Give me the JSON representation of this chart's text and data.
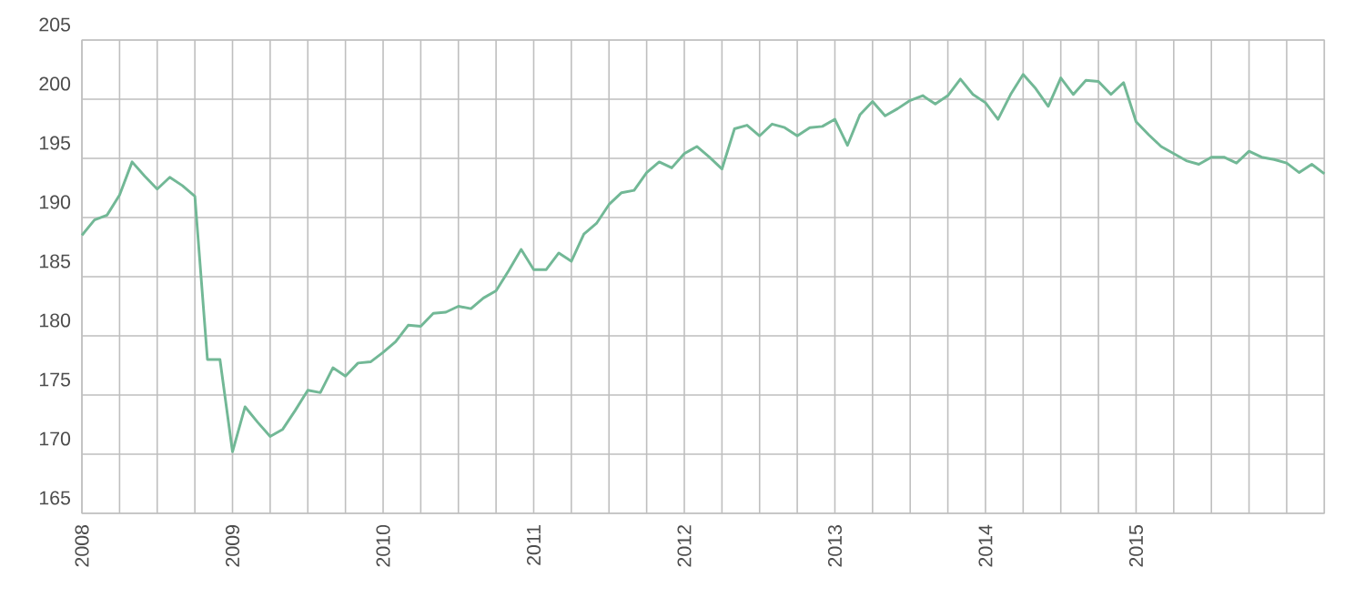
{
  "chart_data": {
    "type": "line",
    "x": [
      "2008-01",
      "2008-02",
      "2008-03",
      "2008-04",
      "2008-05",
      "2008-06",
      "2008-07",
      "2008-08",
      "2008-09",
      "2008-10",
      "2008-11",
      "2008-12",
      "2009-01",
      "2009-02",
      "2009-03",
      "2009-04",
      "2009-05",
      "2009-06",
      "2009-07",
      "2009-08",
      "2009-09",
      "2009-10",
      "2009-11",
      "2009-12",
      "2010-01",
      "2010-02",
      "2010-03",
      "2010-04",
      "2010-05",
      "2010-06",
      "2010-07",
      "2010-08",
      "2010-09",
      "2010-10",
      "2010-11",
      "2010-12",
      "2011-01",
      "2011-02",
      "2011-03",
      "2011-04",
      "2011-05",
      "2011-06",
      "2011-07",
      "2011-08",
      "2011-09",
      "2011-10",
      "2011-11",
      "2011-12",
      "2012-01",
      "2012-02",
      "2012-03",
      "2012-04",
      "2012-05",
      "2012-06",
      "2012-07",
      "2012-08",
      "2012-09",
      "2012-10",
      "2012-11",
      "2012-12",
      "2013-01",
      "2013-02",
      "2013-03",
      "2013-04",
      "2013-05",
      "2013-06",
      "2013-07",
      "2013-08",
      "2013-09",
      "2013-10",
      "2013-11",
      "2013-12",
      "2014-01",
      "2014-02",
      "2014-03",
      "2014-04",
      "2014-05",
      "2014-06",
      "2014-07",
      "2014-08",
      "2014-09",
      "2014-10",
      "2014-11",
      "2014-12",
      "2015-01",
      "2015-02",
      "2015-03",
      "2015-04",
      "2015-05",
      "2015-06",
      "2015-07",
      "2015-08",
      "2015-09",
      "2015-10",
      "2015-11",
      "2015-12",
      "2016-01",
      "2016-02",
      "2016-03",
      "2016-04"
    ],
    "series": [
      {
        "color": "#72b896",
        "values": [
          188.5,
          189.8,
          190.2,
          191.9,
          194.7,
          193.5,
          192.4,
          193.4,
          192.7,
          191.8,
          178.0,
          178.0,
          170.2,
          174.0,
          172.7,
          171.5,
          172.1,
          173.7,
          175.4,
          175.2,
          177.3,
          176.6,
          177.7,
          177.8,
          178.6,
          179.5,
          180.9,
          180.8,
          181.9,
          182.0,
          182.5,
          182.3,
          183.2,
          183.8,
          185.5,
          187.3,
          185.6,
          185.6,
          187.0,
          186.3,
          188.6,
          189.5,
          191.1,
          192.1,
          192.3,
          193.8,
          194.7,
          194.2,
          195.4,
          196.0,
          195.1,
          194.1,
          197.5,
          197.8,
          196.9,
          197.9,
          197.6,
          196.9,
          197.6,
          197.7,
          198.3,
          196.1,
          198.7,
          199.8,
          198.6,
          199.2,
          199.9,
          200.3,
          199.6,
          200.3,
          201.7,
          200.4,
          199.7,
          198.3,
          200.4,
          202.1,
          200.9,
          199.4,
          201.8,
          200.4,
          201.6,
          201.5,
          200.4,
          201.4,
          198.1,
          197.0,
          196.0,
          195.4,
          194.8,
          194.5,
          195.1,
          195.1,
          194.6,
          195.6,
          195.1,
          194.9,
          194.6,
          193.8,
          194.5,
          193.7
        ]
      }
    ],
    "xlim": [
      "2008-01",
      "2016-04"
    ],
    "xticks": [
      {
        "value": "2008-01",
        "label": "2008"
      },
      {
        "value": "2008-04",
        "label": null
      },
      {
        "value": "2008-07",
        "label": null
      },
      {
        "value": "2008-10",
        "label": null
      },
      {
        "value": "2009-01",
        "label": "2009"
      },
      {
        "value": "2009-04",
        "label": null
      },
      {
        "value": "2009-07",
        "label": null
      },
      {
        "value": "2009-10",
        "label": null
      },
      {
        "value": "2010-01",
        "label": "2010"
      },
      {
        "value": "2010-04",
        "label": null
      },
      {
        "value": "2010-07",
        "label": null
      },
      {
        "value": "2010-10",
        "label": null
      },
      {
        "value": "2011-01",
        "label": "2011"
      },
      {
        "value": "2011-04",
        "label": null
      },
      {
        "value": "2011-07",
        "label": null
      },
      {
        "value": "2011-10",
        "label": null
      },
      {
        "value": "2012-01",
        "label": "2012"
      },
      {
        "value": "2012-04",
        "label": null
      },
      {
        "value": "2012-07",
        "label": null
      },
      {
        "value": "2012-10",
        "label": null
      },
      {
        "value": "2013-01",
        "label": "2013"
      },
      {
        "value": "2013-04",
        "label": null
      },
      {
        "value": "2013-07",
        "label": null
      },
      {
        "value": "2013-10",
        "label": null
      },
      {
        "value": "2014-01",
        "label": "2014"
      },
      {
        "value": "2014-04",
        "label": null
      },
      {
        "value": "2014-07",
        "label": null
      },
      {
        "value": "2014-10",
        "label": null
      },
      {
        "value": "2015-01",
        "label": "2015"
      },
      {
        "value": "2015-04",
        "label": null
      },
      {
        "value": "2015-07",
        "label": null
      },
      {
        "value": "2015-10",
        "label": null
      },
      {
        "value": "2016-01",
        "label": null
      },
      {
        "value": "2016-04",
        "label": null
      }
    ],
    "ylim": [
      165,
      205
    ],
    "yticks": [
      165,
      170,
      175,
      180,
      185,
      190,
      195,
      200,
      205
    ],
    "grid": true,
    "marker": "none",
    "line_style": "solid"
  }
}
